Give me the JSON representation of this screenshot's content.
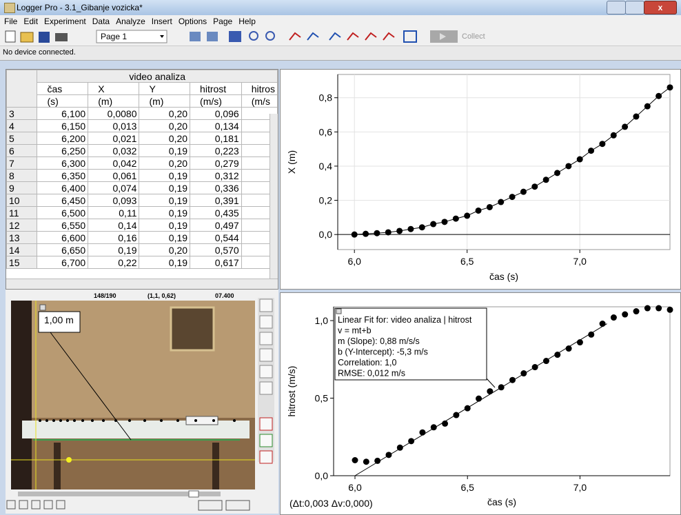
{
  "window": {
    "title": "Logger Pro - 3.1_Gibanje vozicka*"
  },
  "menu": [
    "File",
    "Edit",
    "Experiment",
    "Data",
    "Analyze",
    "Insert",
    "Options",
    "Page",
    "Help"
  ],
  "toolbar": {
    "page": "Page 1",
    "collect": "Collect"
  },
  "status": "No device connected.",
  "table": {
    "title": "video analiza",
    "columns": [
      {
        "name": "čas",
        "unit": "(s)"
      },
      {
        "name": "X",
        "unit": "(m)"
      },
      {
        "name": "Y",
        "unit": "(m)"
      },
      {
        "name": "hitrost",
        "unit": "(m/s)"
      },
      {
        "name": "hitros",
        "unit": "(m/s"
      }
    ],
    "rows": [
      [
        "3",
        "6,100",
        "0,0080",
        "0,20",
        "0,096"
      ],
      [
        "4",
        "6,150",
        "0,013",
        "0,20",
        "0,134"
      ],
      [
        "5",
        "6,200",
        "0,021",
        "0,20",
        "0,181"
      ],
      [
        "6",
        "6,250",
        "0,032",
        "0,19",
        "0,223"
      ],
      [
        "7",
        "6,300",
        "0,042",
        "0,20",
        "0,279"
      ],
      [
        "8",
        "6,350",
        "0,061",
        "0,19",
        "0,312"
      ],
      [
        "9",
        "6,400",
        "0,074",
        "0,19",
        "0,336"
      ],
      [
        "10",
        "6,450",
        "0,093",
        "0,19",
        "0,391"
      ],
      [
        "11",
        "6,500",
        "0,11",
        "0,19",
        "0,435"
      ],
      [
        "12",
        "6,550",
        "0,14",
        "0,19",
        "0,497"
      ],
      [
        "13",
        "6,600",
        "0,16",
        "0,19",
        "0,544"
      ],
      [
        "14",
        "6,650",
        "0,19",
        "0,20",
        "0,570"
      ],
      [
        "15",
        "6,700",
        "0,22",
        "0,19",
        "0,617"
      ]
    ]
  },
  "video": {
    "frame": "148/190",
    "coords": "(1,1, 0,62)",
    "time": "07.400",
    "scale": "1,00 m"
  },
  "chart_data": [
    {
      "type": "scatter",
      "connect": true,
      "grid": true,
      "x_label": "čas (s)",
      "y_label": "X (m)",
      "xlim": [
        5.926,
        7.4
      ],
      "ylim": [
        -0.088,
        0.936
      ],
      "xticks": [
        {
          "value": 6.0,
          "label": "6,0"
        },
        {
          "value": 6.5,
          "label": "6,5"
        },
        {
          "value": 7.0,
          "label": "7,0"
        }
      ],
      "yticks": [
        {
          "value": 0.0,
          "label": "0,0"
        },
        {
          "value": 0.2,
          "label": "0,2"
        },
        {
          "value": 0.4,
          "label": "0,4"
        },
        {
          "value": 0.6,
          "label": "0,6"
        },
        {
          "value": 0.8,
          "label": "0,8"
        }
      ],
      "x": [
        6.0,
        6.05,
        6.1,
        6.15,
        6.2,
        6.25,
        6.3,
        6.35,
        6.4,
        6.45,
        6.5,
        6.55,
        6.6,
        6.65,
        6.7,
        6.75,
        6.8,
        6.85,
        6.9,
        6.95,
        7.0,
        7.05,
        7.1,
        7.15,
        7.2,
        7.25,
        7.3,
        7.35,
        7.4
      ],
      "series": [
        {
          "color": "#000000",
          "values": [
            0.0,
            0.004,
            0.008,
            0.013,
            0.021,
            0.032,
            0.042,
            0.061,
            0.074,
            0.093,
            0.11,
            0.14,
            0.16,
            0.19,
            0.22,
            0.25,
            0.28,
            0.32,
            0.36,
            0.4,
            0.44,
            0.49,
            0.53,
            0.58,
            0.63,
            0.69,
            0.75,
            0.81,
            0.86
          ]
        }
      ]
    },
    {
      "type": "scatter",
      "connect": false,
      "grid": false,
      "x_label": "čas (s)",
      "y_label": "hitrost (m/s)",
      "xlim": [
        5.905,
        7.4
      ],
      "ylim": [
        0,
        1.089
      ],
      "xticks": [
        {
          "value": 6.0,
          "label": "6,0"
        },
        {
          "value": 6.5,
          "label": "6,5"
        },
        {
          "value": 7.0,
          "label": "7,0"
        }
      ],
      "yticks": [
        {
          "value": 0.0,
          "label": "0,0"
        },
        {
          "value": 0.5,
          "label": "0,5"
        },
        {
          "value": 1.0,
          "label": "1,0"
        }
      ],
      "x": [
        6.0,
        6.05,
        6.1,
        6.15,
        6.2,
        6.25,
        6.3,
        6.35,
        6.4,
        6.45,
        6.5,
        6.55,
        6.6,
        6.65,
        6.7,
        6.75,
        6.8,
        6.85,
        6.9,
        6.95,
        7.0,
        7.05,
        7.1,
        7.15,
        7.2,
        7.25,
        7.3,
        7.35,
        7.4
      ],
      "series": [
        {
          "color": "#000000",
          "values": [
            0.1,
            0.09,
            0.096,
            0.134,
            0.181,
            0.223,
            0.279,
            0.312,
            0.336,
            0.391,
            0.435,
            0.497,
            0.544,
            0.57,
            0.617,
            0.66,
            0.7,
            0.74,
            0.78,
            0.82,
            0.86,
            0.91,
            0.98,
            1.02,
            1.04,
            1.06,
            1.08,
            1.08,
            1.07
          ]
        }
      ],
      "fit": {
        "x": [
          6.0,
          7.12
        ],
        "values": [
          0.0,
          0.98
        ]
      },
      "annotation": [
        "Linear Fit for: video analiza | hitrost",
        "v = mt+b",
        "m (Slope): 0,88 m/s/s",
        "b (Y-Intercept): -5,3 m/s",
        "Correlation: 1,0",
        "RMSE: 0,012 m/s"
      ],
      "readout": "(Δt:0,003 Δv:0,000)"
    }
  ]
}
